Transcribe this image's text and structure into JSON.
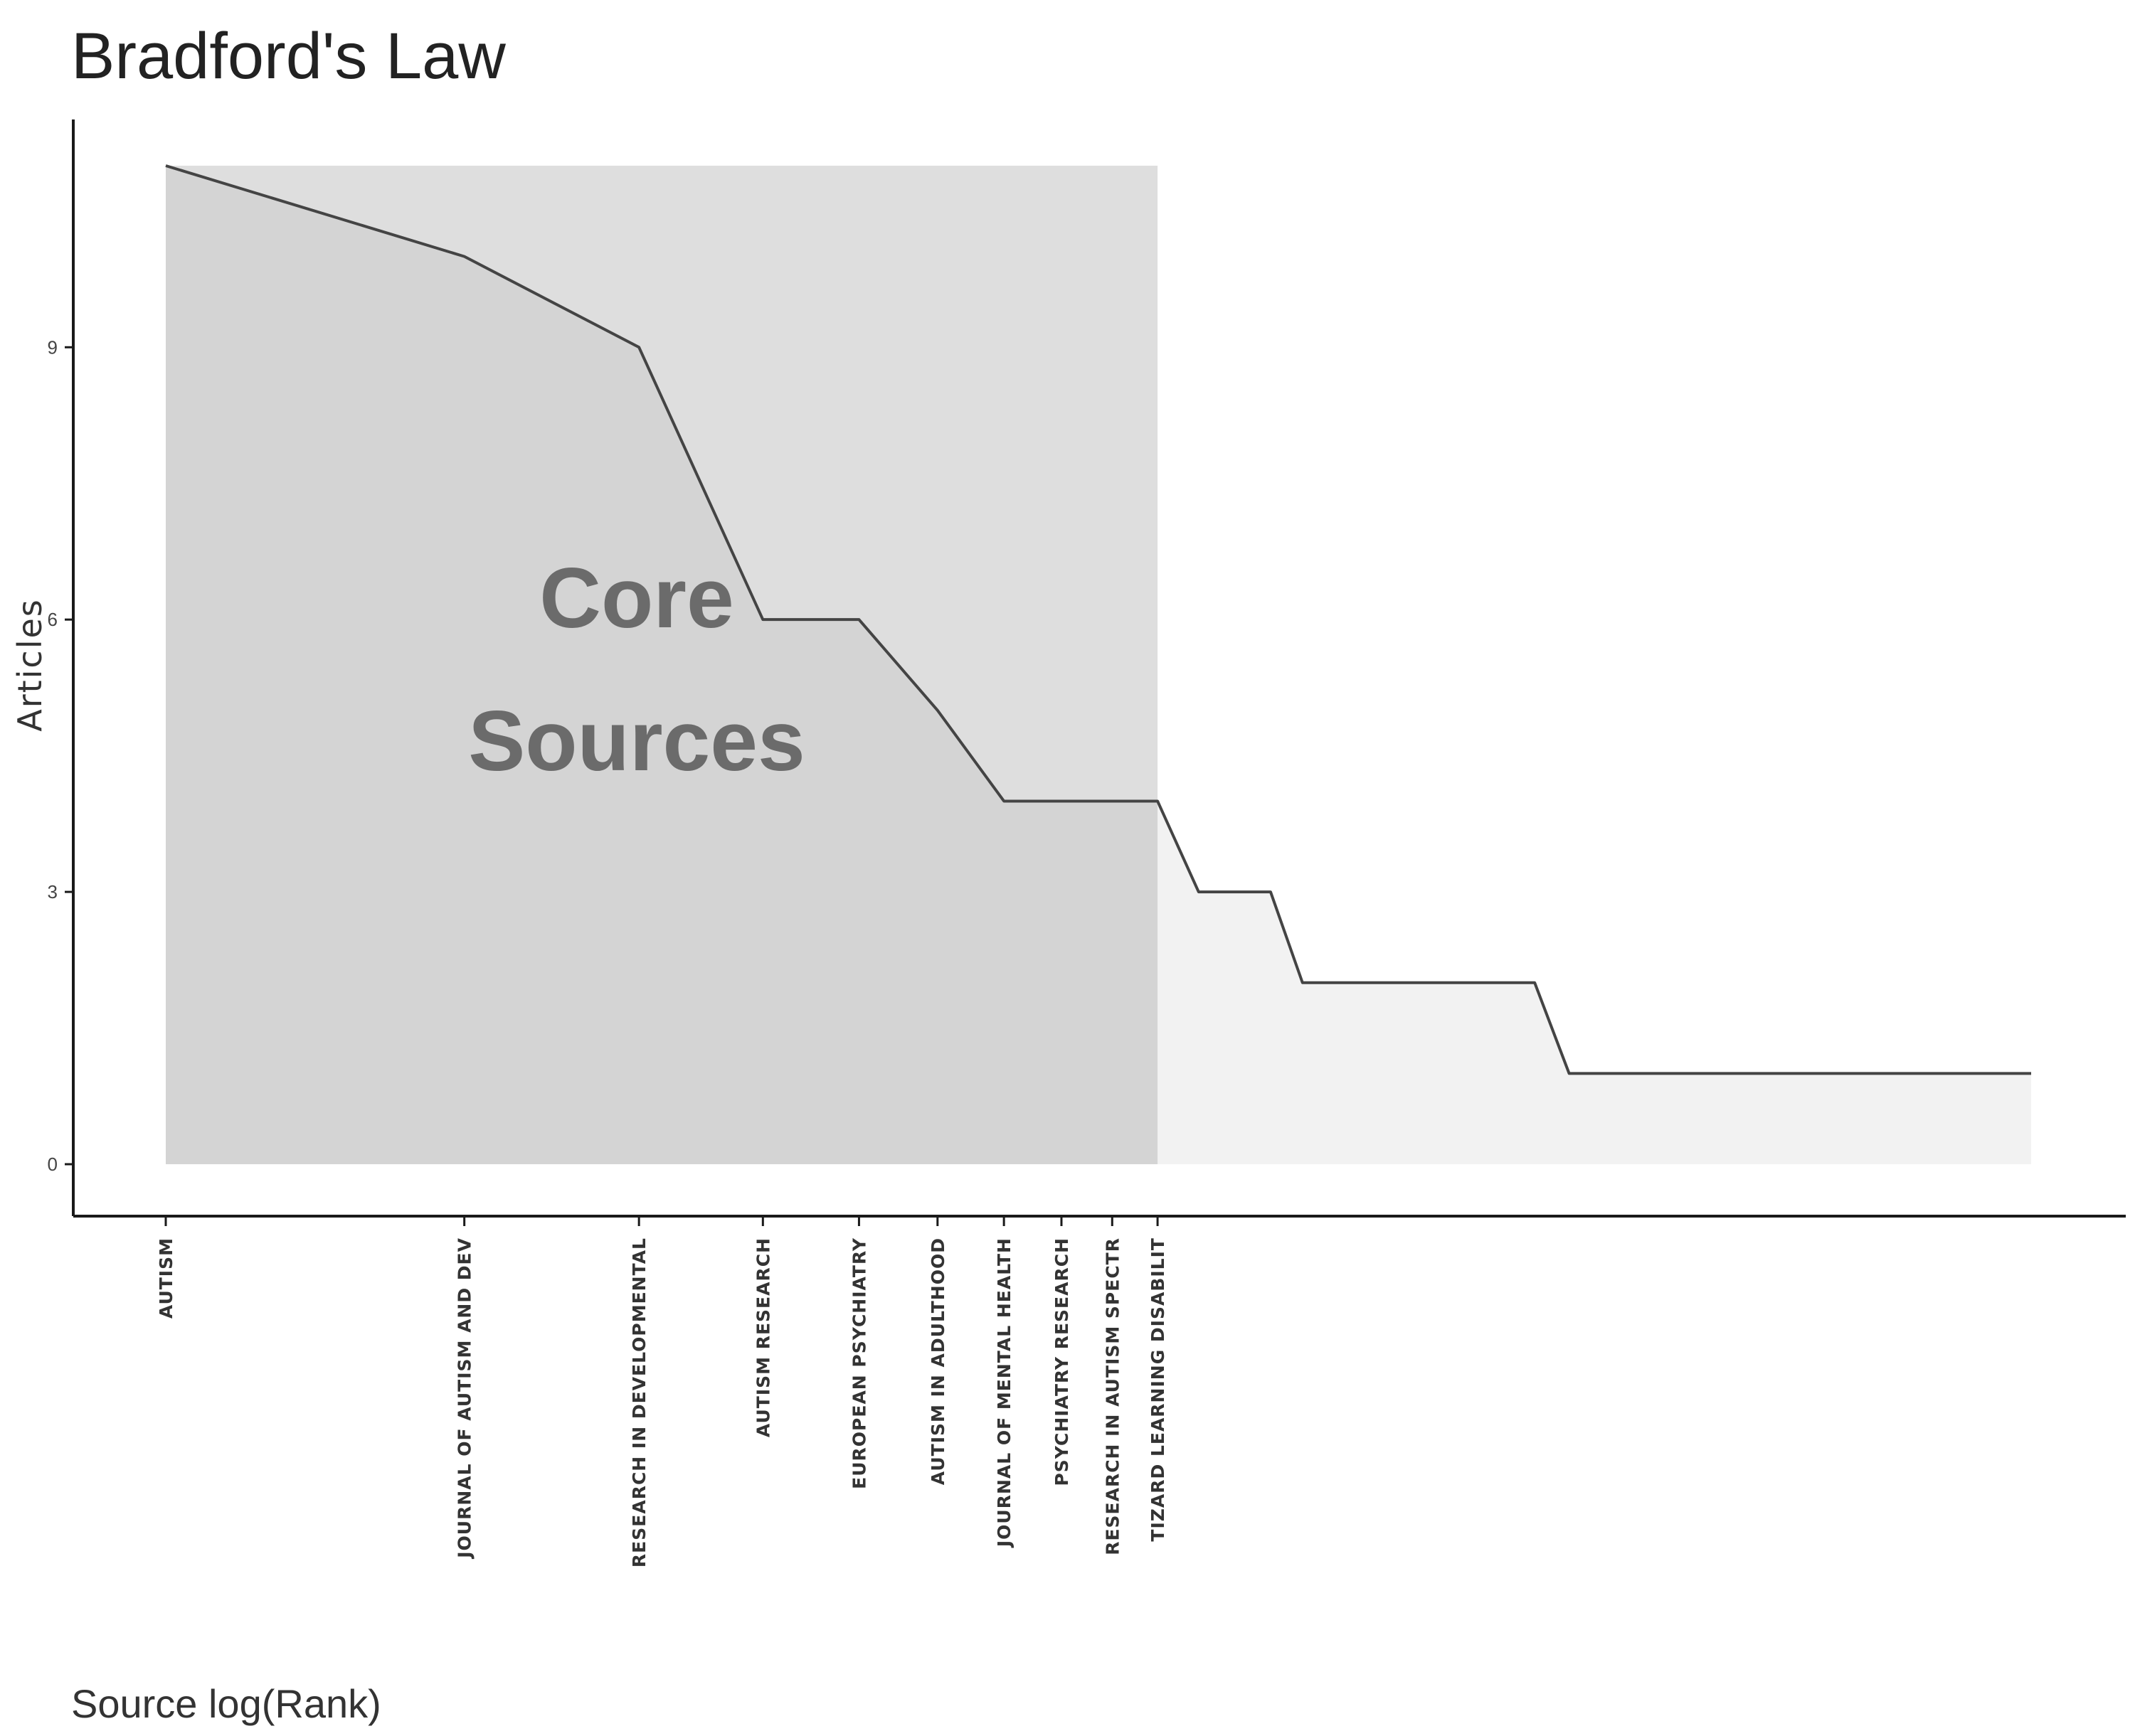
{
  "chart_data": {
    "type": "area",
    "title": "Bradford's Law",
    "xlabel": "Source log(Rank)",
    "ylabel": "Articles",
    "x_scale": "log",
    "ylim": [
      0,
      11
    ],
    "yticks": [
      0,
      3,
      6,
      9
    ],
    "grid": false,
    "legend": "none",
    "x": [
      1,
      2,
      3,
      4,
      5,
      6,
      7,
      8,
      9,
      10,
      11,
      13,
      14,
      24,
      26,
      76
    ],
    "y": [
      11,
      10,
      9,
      6,
      6,
      5,
      4,
      4,
      4,
      4,
      3,
      3,
      2,
      2,
      1,
      1
    ],
    "tick_labels": [
      {
        "x": 1,
        "label": "AUTISM"
      },
      {
        "x": 2,
        "label": "JOURNAL OF AUTISM AND DEV"
      },
      {
        "x": 3,
        "label": "RESEARCH IN DEVELOPMENTAL"
      },
      {
        "x": 4,
        "label": "AUTISM RESEARCH"
      },
      {
        "x": 5,
        "label": "EUROPEAN PSYCHIATRY"
      },
      {
        "x": 6,
        "label": "AUTISM IN ADULTHOOD"
      },
      {
        "x": 7,
        "label": "JOURNAL OF MENTAL HEALTH"
      },
      {
        "x": 8,
        "label": "PSYCHIATRY RESEARCH"
      },
      {
        "x": 9,
        "label": "RESEARCH IN AUTISM SPECTR"
      },
      {
        "x": 10,
        "label": "TIZARD LEARNING DISABILIT"
      }
    ],
    "core_zone": {
      "x_start": 1,
      "x_end": 10
    },
    "annotation": {
      "line1": "Core",
      "line2": "Sources"
    },
    "colors": {
      "core_rect": "#dedede",
      "core_area": "#d4d4d4",
      "other_area": "#f2f2f2",
      "line": "#444444",
      "axis": "#1a1a1a",
      "annotation": "#6b6b6b"
    }
  }
}
